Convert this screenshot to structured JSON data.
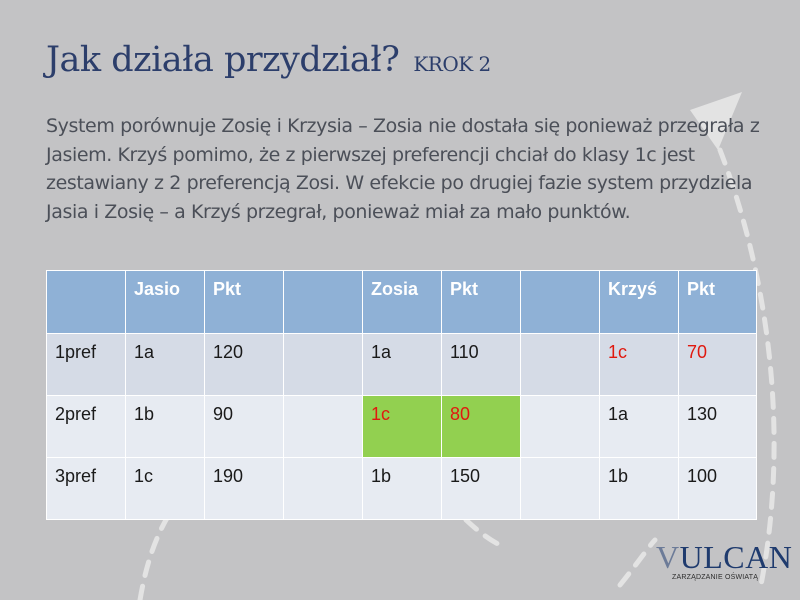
{
  "slide": {
    "title": "Jak działa przydział?",
    "step": "KROK 2",
    "body": "System porównuje Zosię i Krzysia – Zosia nie dostała się ponieważ przegrała z Jasiem. Krzyś pomimo, że z pierwszej preferencji chciał do klasy 1c jest zestawiany z 2 preferencją Zosi.  W efekcie po drugiej fazie system przydziela Jasia i Zosię – a Krzyś przegrał, ponieważ miał za mało punktów."
  },
  "table": {
    "headers": [
      "",
      "Jasio",
      "Pkt",
      "",
      "Zosia",
      "Pkt",
      "",
      "Krzyś",
      "Pkt"
    ],
    "rows": [
      [
        "1pref",
        "1a",
        "120",
        "",
        "1a",
        "110",
        "",
        "1c",
        "70"
      ],
      [
        "2pref",
        "1b",
        "90",
        "",
        "1c",
        "80",
        "",
        "1a",
        "130"
      ],
      [
        "3pref",
        "1c",
        "190",
        "",
        "1b",
        "150",
        "",
        "1b",
        "100"
      ]
    ]
  },
  "colors": {
    "highlight": "#92d050",
    "emphasis_text": "#e0190f",
    "header_bg": "#8fb1d6",
    "title": "#2c3e6b"
  },
  "logo": {
    "initial": "V",
    "rest": "ULCAN",
    "tagline": "ZARZĄDZANIE OŚWIATĄ"
  }
}
